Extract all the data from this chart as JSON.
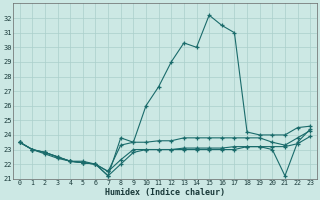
{
  "xlabel": "Humidex (Indice chaleur)",
  "background_color": "#cce8e4",
  "grid_color": "#aacfcb",
  "line_color": "#1a6b6b",
  "hours": [
    0,
    1,
    2,
    3,
    4,
    5,
    6,
    7,
    8,
    9,
    10,
    11,
    12,
    13,
    14,
    15,
    16,
    17,
    18,
    19,
    20,
    21,
    22,
    23
  ],
  "line1": [
    23.5,
    23.0,
    22.8,
    22.5,
    22.2,
    22.1,
    22.0,
    21.2,
    23.8,
    23.5,
    26.0,
    27.3,
    29.0,
    30.3,
    30.0,
    32.2,
    31.5,
    31.0,
    24.2,
    24.0,
    24.0,
    24.0,
    24.5,
    24.6
  ],
  "line2": [
    23.5,
    23.0,
    22.8,
    22.5,
    22.2,
    22.1,
    22.0,
    21.2,
    22.0,
    22.8,
    23.0,
    23.0,
    23.0,
    23.1,
    23.1,
    23.1,
    23.1,
    23.2,
    23.2,
    23.2,
    23.0,
    21.2,
    23.5,
    24.4
  ],
  "line3": [
    23.5,
    23.0,
    22.7,
    22.4,
    22.2,
    22.1,
    22.0,
    21.5,
    22.3,
    23.0,
    23.0,
    23.0,
    23.0,
    23.0,
    23.0,
    23.0,
    23.0,
    23.0,
    23.2,
    23.2,
    23.2,
    23.2,
    23.4,
    23.9
  ],
  "line4": [
    23.5,
    23.0,
    22.8,
    22.5,
    22.2,
    22.2,
    22.0,
    21.5,
    23.3,
    23.5,
    23.5,
    23.6,
    23.6,
    23.8,
    23.8,
    23.8,
    23.8,
    23.8,
    23.8,
    23.8,
    23.5,
    23.3,
    23.8,
    24.3
  ],
  "ylim": [
    21,
    33
  ],
  "xlim": [
    -0.5,
    23.5
  ],
  "yticks": [
    21,
    22,
    23,
    24,
    25,
    26,
    27,
    28,
    29,
    30,
    31,
    32
  ],
  "xticks": [
    0,
    1,
    2,
    3,
    4,
    5,
    6,
    7,
    8,
    9,
    10,
    11,
    12,
    13,
    14,
    15,
    16,
    17,
    18,
    19,
    20,
    21,
    22,
    23
  ]
}
